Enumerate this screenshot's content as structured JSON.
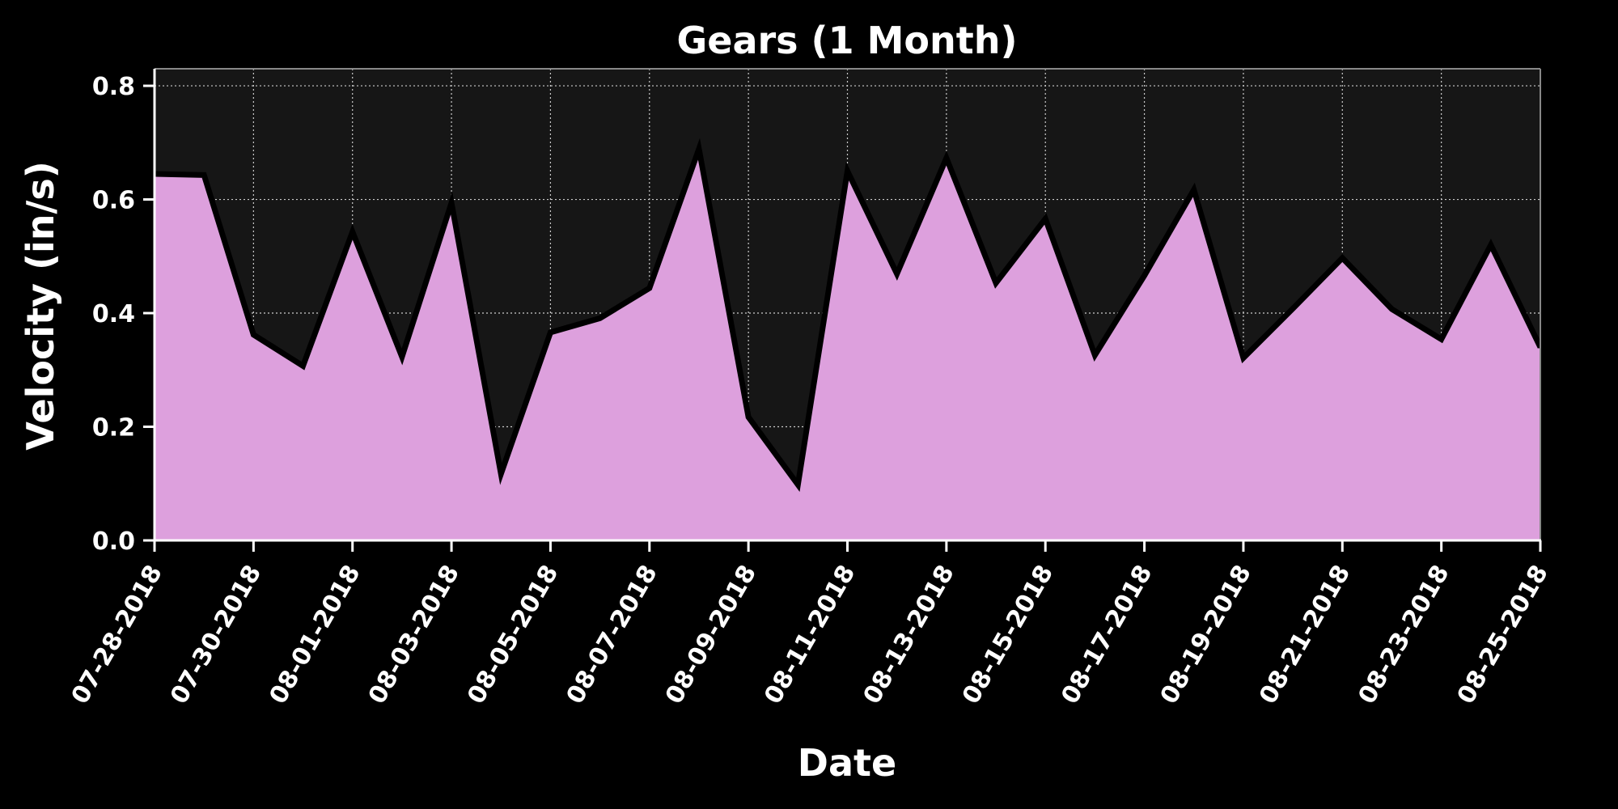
{
  "chart_data": {
    "type": "area",
    "title": "Gears (1 Month)",
    "xlabel": "Date",
    "ylabel": "Velocity (in/s)",
    "ylim": [
      0,
      0.83
    ],
    "yticks": [
      "0.0",
      "0.2",
      "0.4",
      "0.6",
      "0.8"
    ],
    "xticks": [
      "07-28-2018",
      "07-30-2018",
      "08-01-2018",
      "08-03-2018",
      "08-05-2018",
      "08-07-2018",
      "08-09-2018",
      "08-11-2018",
      "08-13-2018",
      "08-15-2018",
      "08-17-2018",
      "08-19-2018",
      "08-21-2018",
      "08-23-2018",
      "08-25-2018"
    ],
    "x": [
      "07-28-2018",
      "07-29-2018",
      "07-30-2018",
      "07-31-2018",
      "08-01-2018",
      "08-02-2018",
      "08-03-2018",
      "08-04-2018",
      "08-05-2018",
      "08-06-2018",
      "08-07-2018",
      "08-08-2018",
      "08-09-2018",
      "08-10-2018",
      "08-11-2018",
      "08-12-2018",
      "08-13-2018",
      "08-14-2018",
      "08-15-2018",
      "08-16-2018",
      "08-17-2018",
      "08-18-2018",
      "08-19-2018",
      "08-20-2018",
      "08-21-2018",
      "08-22-2018",
      "08-23-2018",
      "08-24-2018",
      "08-25-2018"
    ],
    "series": [
      {
        "values": [
          0.645,
          0.643,
          0.362,
          0.307,
          0.543,
          0.323,
          0.594,
          0.117,
          0.366,
          0.391,
          0.444,
          0.689,
          0.217,
          0.098,
          0.65,
          0.469,
          0.673,
          0.453,
          0.566,
          0.326,
          0.466,
          0.617,
          0.321,
          0.408,
          0.497,
          0.407,
          0.354,
          0.52,
          0.34
        ]
      }
    ],
    "grid": true,
    "colors": {
      "fill": "#dda0dd",
      "line": "#000000",
      "plot_background": "#161616",
      "page_background": "#000000",
      "grid": "#cccccc",
      "text": "#ffffff"
    }
  }
}
